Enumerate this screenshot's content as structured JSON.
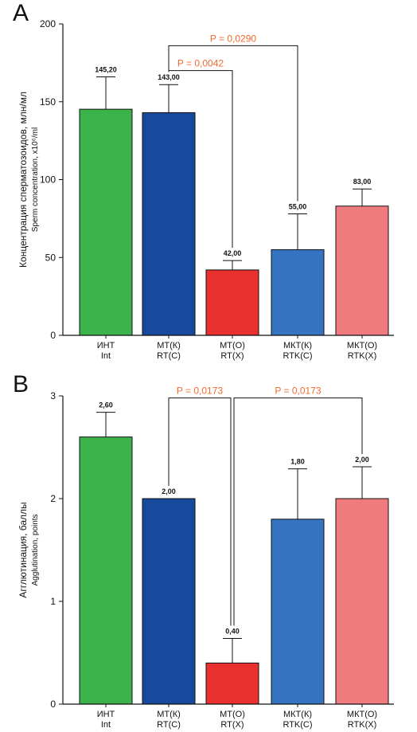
{
  "colors": {
    "bar_fills": [
      "#3cb34a",
      "#174a9c",
      "#e8312f",
      "#3574c0",
      "#ef7b7f"
    ],
    "bracket_text": "#f26a2e",
    "axis": "#111111"
  },
  "chart_data": [
    {
      "type": "bar",
      "panel": "A",
      "ylabel_line1": "Концентрация сперматозоидов, млн/мл",
      "ylabel_line2": "Sperm concentration, x10⁶/ml",
      "ylim": [
        0,
        200
      ],
      "yticks": [
        "0",
        "50",
        "100",
        "150",
        "200"
      ],
      "yticks_values": [
        0,
        50,
        100,
        150,
        200
      ],
      "categories_ru": [
        "ИНТ",
        "МТ(К)",
        "МТ(О)",
        "МКТ(К)",
        "МКТ(О)"
      ],
      "categories_en": [
        "Int",
        "RT(C)",
        "RT(X)",
        "RTK(C)",
        "RTK(X)"
      ],
      "values": [
        145.2,
        143.0,
        42.0,
        55.0,
        83.0
      ],
      "value_labels": [
        "145,20",
        "143,00",
        "42,00",
        "55,00",
        "83,00"
      ],
      "error_upper": [
        166,
        161,
        48,
        78,
        94
      ],
      "brackets": [
        {
          "from": 1,
          "to": 2,
          "label": "P = 0,0042"
        },
        {
          "from": 1,
          "to": 3,
          "label": "P = 0,0290"
        }
      ],
      "grid": false
    },
    {
      "type": "bar",
      "panel": "B",
      "ylabel_line1": "Агглютинация, баллы",
      "ylabel_line2": "Agglutination, points",
      "ylim": [
        0,
        3
      ],
      "yticks": [
        "0",
        "1",
        "2",
        "3"
      ],
      "yticks_values": [
        0,
        1,
        2,
        3
      ],
      "categories_ru": [
        "ИНТ",
        "МТ(К)",
        "МТ(О)",
        "МКТ(К)",
        "МКТ(О)"
      ],
      "categories_en": [
        "Int",
        "RT(C)",
        "RT(X)",
        "RTK(C)",
        "RTK(X)"
      ],
      "values": [
        2.6,
        2.0,
        0.4,
        1.8,
        2.0
      ],
      "value_labels": [
        "2,60",
        "2,00",
        "0,40",
        "1,80",
        "2,00"
      ],
      "error_upper": [
        2.84,
        2.0,
        0.64,
        2.29,
        2.31
      ],
      "brackets": [
        {
          "from": 1,
          "to": 2,
          "label": "P = 0,0173"
        },
        {
          "from": 2,
          "to": 4,
          "label": "P = 0,0173"
        }
      ],
      "grid": false
    }
  ]
}
